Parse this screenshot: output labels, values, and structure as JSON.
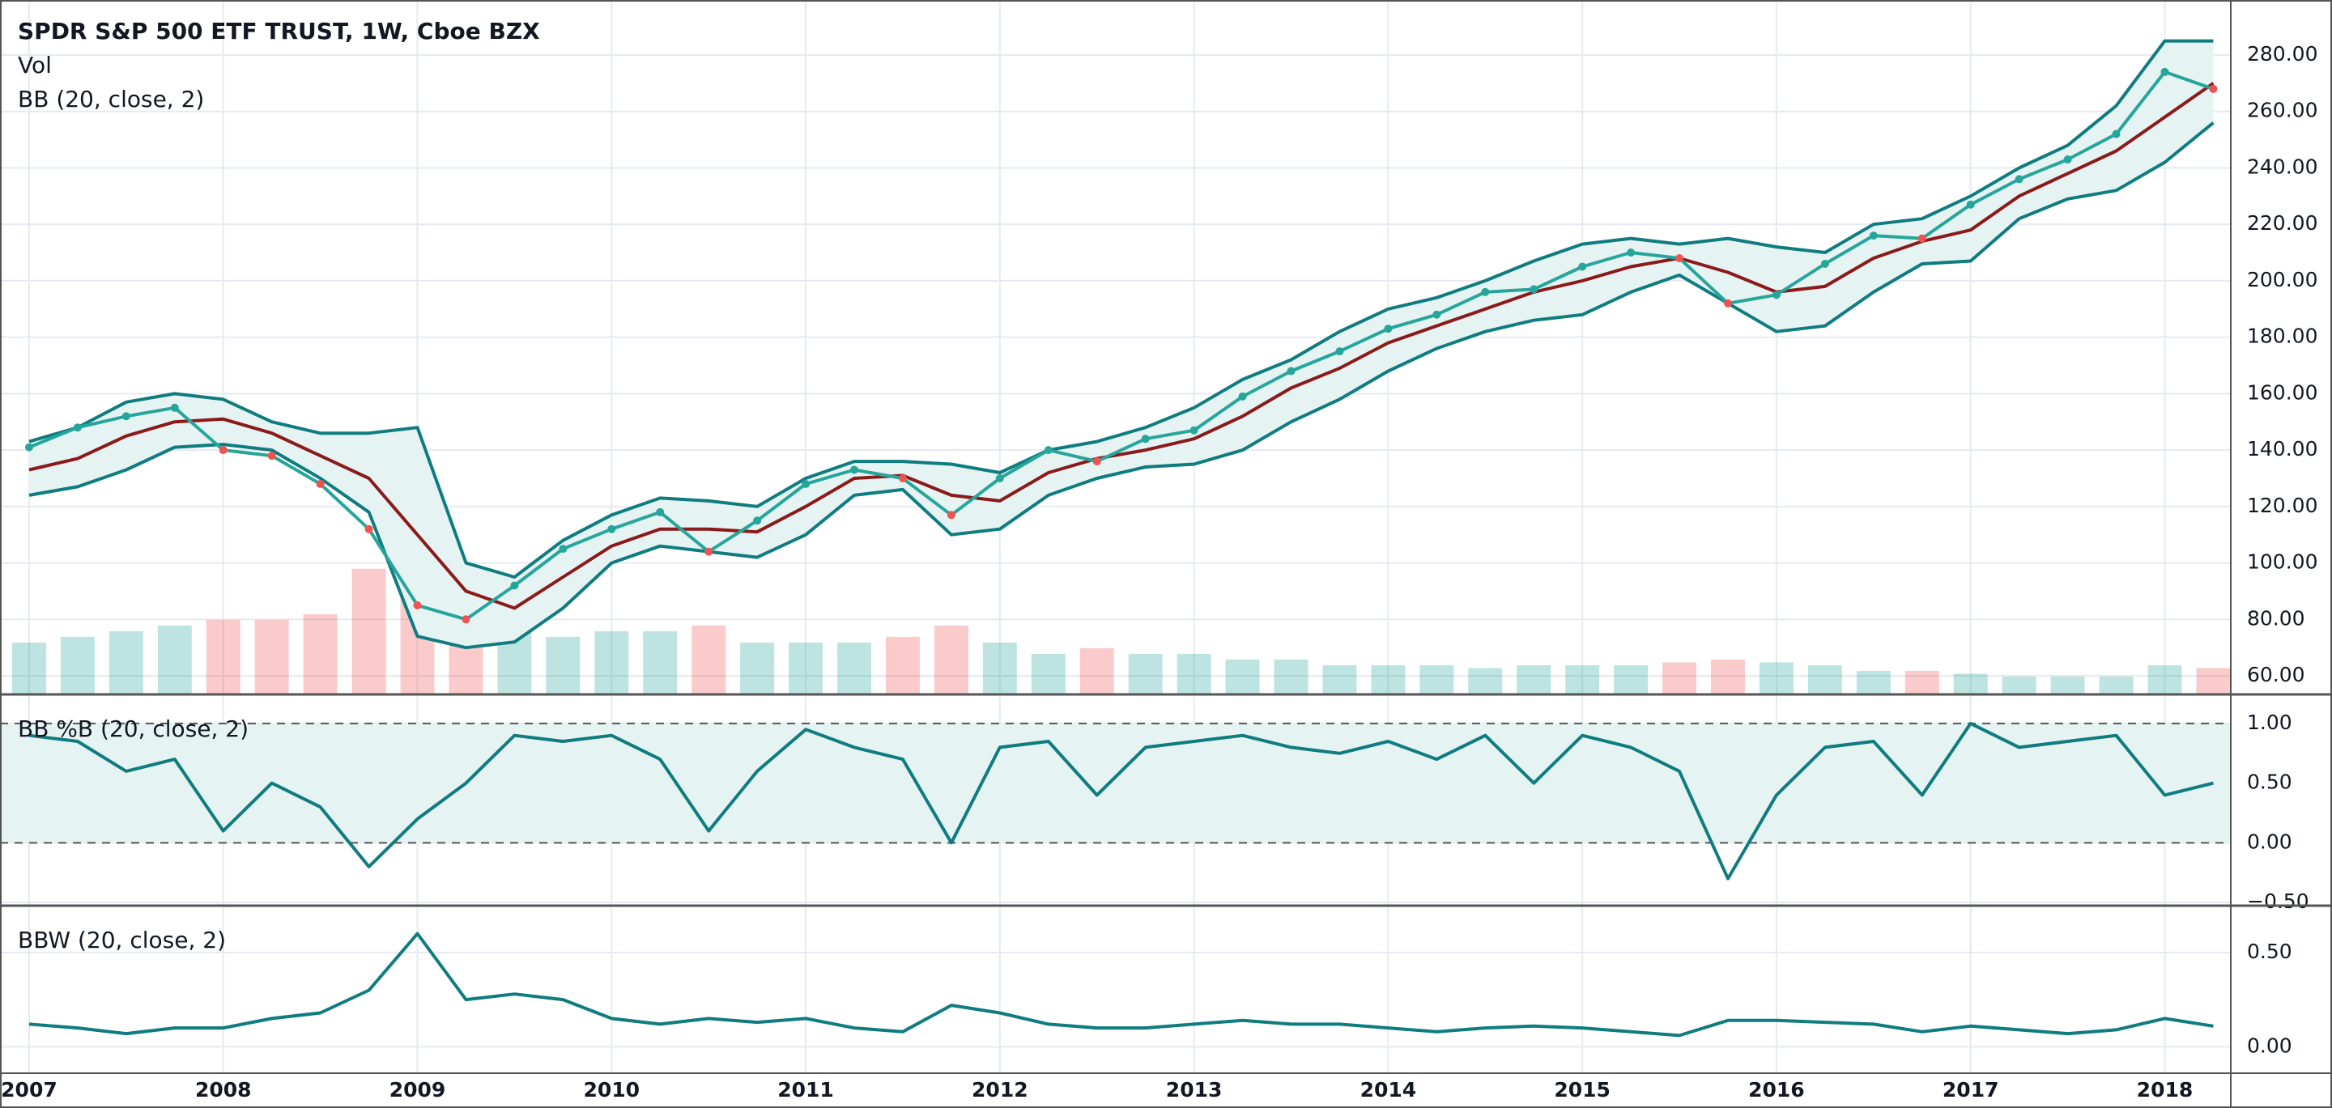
{
  "chart_data": [
    {
      "type": "candlestick-bands",
      "title": "SPDR S&P 500 ETF TRUST, 1W, Cboe BZX",
      "x": [
        2007,
        2007.25,
        2007.5,
        2007.75,
        2008,
        2008.25,
        2008.5,
        2008.75,
        2009,
        2009.25,
        2009.5,
        2009.75,
        2010,
        2010.25,
        2010.5,
        2010.75,
        2011,
        2011.25,
        2011.5,
        2011.75,
        2012,
        2012.25,
        2012.5,
        2012.75,
        2013,
        2013.25,
        2013.5,
        2013.75,
        2014,
        2014.25,
        2014.5,
        2014.75,
        2015,
        2015.25,
        2015.5,
        2015.75,
        2016,
        2016.25,
        2016.5,
        2016.75,
        2017,
        2017.25,
        2017.5,
        2017.75,
        2018,
        2018.25
      ],
      "close": {
        "color": "#26a69a",
        "down_color": "#ef5350",
        "values": [
          141,
          148,
          152,
          155,
          140,
          138,
          128,
          112,
          85,
          80,
          92,
          105,
          112,
          118,
          104,
          115,
          128,
          133,
          130,
          117,
          130,
          140,
          136,
          144,
          147,
          159,
          168,
          175,
          183,
          188,
          196,
          197,
          205,
          210,
          208,
          192,
          195,
          206,
          216,
          215,
          227,
          236,
          243,
          252,
          274,
          268
        ]
      },
      "bands": {
        "label": "BB (20, close, 2)",
        "band_color": "#0f7c80",
        "basis_color": "#8b1a1a",
        "fill": "#e6f3f3",
        "upper": [
          143,
          148,
          157,
          160,
          158,
          150,
          146,
          146,
          148,
          100,
          95,
          108,
          117,
          123,
          122,
          120,
          130,
          136,
          136,
          135,
          132,
          140,
          143,
          148,
          155,
          165,
          172,
          182,
          190,
          194,
          200,
          207,
          213,
          215,
          213,
          215,
          212,
          210,
          220,
          222,
          230,
          240,
          248,
          262,
          285,
          285
        ],
        "basis": [
          133,
          137,
          145,
          150,
          151,
          146,
          138,
          130,
          110,
          90,
          84,
          95,
          106,
          112,
          112,
          111,
          120,
          130,
          131,
          124,
          122,
          132,
          137,
          140,
          144,
          152,
          162,
          169,
          178,
          184,
          190,
          196,
          200,
          205,
          208,
          203,
          196,
          198,
          208,
          214,
          218,
          230,
          238,
          246,
          258,
          270
        ],
        "lower": [
          124,
          127,
          133,
          141,
          142,
          140,
          130,
          118,
          74,
          70,
          72,
          84,
          100,
          106,
          104,
          102,
          110,
          124,
          126,
          110,
          112,
          124,
          130,
          134,
          135,
          140,
          150,
          158,
          168,
          176,
          182,
          186,
          188,
          196,
          202,
          192,
          182,
          184,
          196,
          206,
          207,
          222,
          229,
          232,
          242,
          256
        ]
      },
      "volume": {
        "label": "Vol",
        "values": [
          900,
          1000,
          1100,
          1200,
          1300,
          1300,
          1400,
          2200,
          1900,
          1800,
          1300,
          1000,
          1100,
          1100,
          1200,
          900,
          900,
          900,
          1000,
          1200,
          900,
          700,
          800,
          700,
          700,
          600,
          600,
          500,
          500,
          500,
          450,
          500,
          500,
          500,
          550,
          600,
          550,
          500,
          400,
          400,
          350,
          300,
          300,
          300,
          500,
          450
        ]
      },
      "ylim": [
        53.7,
        299.5
      ],
      "yticks": [
        {
          "value": 60,
          "label": "60.00"
        },
        {
          "value": 80,
          "label": "80.00"
        },
        {
          "value": 100,
          "label": "100.00"
        },
        {
          "value": 120,
          "label": "120.00"
        },
        {
          "value": 140,
          "label": "140.00"
        },
        {
          "value": 160,
          "label": "160.00"
        },
        {
          "value": 180,
          "label": "180.00"
        },
        {
          "value": 200,
          "label": "200.00"
        },
        {
          "value": 220,
          "label": "220.00"
        },
        {
          "value": 240,
          "label": "240.00"
        },
        {
          "value": 260,
          "label": "260.00"
        },
        {
          "value": 280,
          "label": "280.00"
        }
      ],
      "grid": true
    },
    {
      "type": "line",
      "title": "BB %B (20, close, 2)",
      "color": "#0f7c80",
      "band": [
        0,
        1
      ],
      "band_fill": "#e6f3f3",
      "x": [
        2007,
        2007.25,
        2007.5,
        2007.75,
        2008,
        2008.25,
        2008.5,
        2008.75,
        2009,
        2009.25,
        2009.5,
        2009.75,
        2010,
        2010.25,
        2010.5,
        2010.75,
        2011,
        2011.25,
        2011.5,
        2011.75,
        2012,
        2012.25,
        2012.5,
        2012.75,
        2013,
        2013.25,
        2013.5,
        2013.75,
        2014,
        2014.25,
        2014.5,
        2014.75,
        2015,
        2015.25,
        2015.5,
        2015.75,
        2016,
        2016.25,
        2016.5,
        2016.75,
        2017,
        2017.25,
        2017.5,
        2017.75,
        2018,
        2018.25
      ],
      "values": [
        0.9,
        0.85,
        0.6,
        0.7,
        0.1,
        0.5,
        0.3,
        -0.2,
        0.2,
        0.5,
        0.9,
        0.85,
        0.9,
        0.7,
        0.1,
        0.6,
        0.95,
        0.8,
        0.7,
        0.0,
        0.8,
        0.85,
        0.4,
        0.8,
        0.85,
        0.9,
        0.8,
        0.75,
        0.85,
        0.7,
        0.9,
        0.5,
        0.9,
        0.8,
        0.6,
        -0.3,
        0.4,
        0.8,
        0.85,
        0.4,
        1.0,
        0.8,
        0.85,
        0.9,
        0.4,
        0.5
      ],
      "ylim": [
        -0.52,
        1.23
      ],
      "yticks": [
        {
          "value": 1,
          "label": "1.00"
        },
        {
          "value": 0.5,
          "label": "0.50"
        },
        {
          "value": 0,
          "label": "0.00"
        },
        {
          "value": -0.5,
          "label": "−0.50"
        }
      ],
      "grid": true
    },
    {
      "type": "line",
      "title": "BBW (20, close, 2)",
      "color": "#0f7c80",
      "x": [
        2007,
        2007.25,
        2007.5,
        2007.75,
        2008,
        2008.25,
        2008.5,
        2008.75,
        2009,
        2009.25,
        2009.5,
        2009.75,
        2010,
        2010.25,
        2010.5,
        2010.75,
        2011,
        2011.25,
        2011.5,
        2011.75,
        2012,
        2012.25,
        2012.5,
        2012.75,
        2013,
        2013.25,
        2013.5,
        2013.75,
        2014,
        2014.25,
        2014.5,
        2014.75,
        2015,
        2015.25,
        2015.5,
        2015.75,
        2016,
        2016.25,
        2016.5,
        2016.75,
        2017,
        2017.25,
        2017.5,
        2017.75,
        2018,
        2018.25
      ],
      "values": [
        0.12,
        0.1,
        0.07,
        0.1,
        0.1,
        0.15,
        0.18,
        0.3,
        0.6,
        0.25,
        0.28,
        0.25,
        0.15,
        0.12,
        0.15,
        0.13,
        0.15,
        0.1,
        0.08,
        0.22,
        0.18,
        0.12,
        0.1,
        0.1,
        0.12,
        0.14,
        0.12,
        0.12,
        0.1,
        0.08,
        0.1,
        0.11,
        0.1,
        0.08,
        0.06,
        0.14,
        0.14,
        0.13,
        0.12,
        0.08,
        0.11,
        0.09,
        0.07,
        0.09,
        0.15,
        0.11
      ],
      "ylim": [
        -0.14,
        0.74
      ],
      "yticks": [
        {
          "value": 0.5,
          "label": "0.50"
        },
        {
          "value": 0,
          "label": "0.00"
        }
      ],
      "xlim": [
        2006.85,
        2018.34
      ],
      "xticks": [
        2007,
        2008,
        2009,
        2010,
        2011,
        2012,
        2013,
        2014,
        2015,
        2016,
        2017,
        2018
      ],
      "grid": true
    }
  ]
}
